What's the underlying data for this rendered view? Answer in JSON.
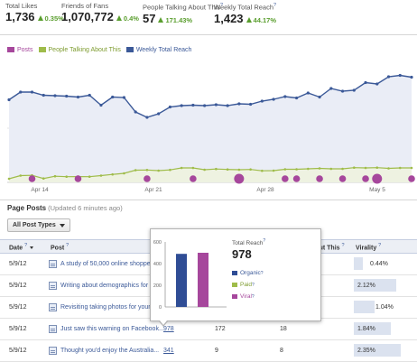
{
  "stats": [
    {
      "label": "Total Likes",
      "value": "1,736",
      "change": "0.35%"
    },
    {
      "label": "Friends of Fans",
      "value": "1,070,772",
      "change": "0.4%"
    },
    {
      "label": "People Talking About This",
      "value": "57",
      "change": "171.43%"
    },
    {
      "label": "Weekly Total Reach",
      "value": "1,423",
      "change": "44.17%"
    }
  ],
  "colors": {
    "posts": "#a6479c",
    "talking": "#9fbc4a",
    "reach": "#3b5998",
    "positive": "#5a9e2e",
    "link": "#3b5998"
  },
  "chart_data": {
    "type": "line",
    "legend": [
      "Posts",
      "People Talking About This",
      "Weekly Total Reach"
    ],
    "x_ticks": [
      "Apr 14",
      "Apr 21",
      "Apr 28",
      "May 5"
    ],
    "series": [
      {
        "name": "Weekly Total Reach",
        "values": [
          915,
          1000,
          1000,
          965,
          960,
          955,
          945,
          965,
          855,
          945,
          940,
          780,
          720,
          760,
          835,
          850,
          855,
          850,
          860,
          850,
          870,
          865,
          900,
          920,
          950,
          935,
          990,
          945,
          1040,
          1010,
          1020,
          1105,
          1090,
          1170,
          1185,
          1165
        ]
      },
      {
        "name": "People Talking About This",
        "values": [
          40,
          75,
          78,
          43,
          68,
          63,
          64,
          63,
          75,
          88,
          100,
          135,
          137,
          130,
          138,
          160,
          160,
          140,
          148,
          143,
          140,
          143,
          128,
          130,
          145,
          145,
          150,
          155,
          150,
          150,
          163,
          160,
          163,
          155,
          160,
          160
        ]
      },
      {
        "name": "Posts",
        "markers": [
          2,
          6,
          12,
          16,
          20,
          24,
          25,
          27,
          29,
          31,
          32,
          35
        ]
      }
    ],
    "marker_sizes": [
      1,
      1,
      1,
      1,
      2,
      1,
      1,
      1,
      1,
      1,
      2,
      1
    ]
  },
  "page_posts": {
    "title": "Page Posts",
    "updated": "(Updated 6 minutes ago)",
    "filter": "All Post Types",
    "columns": {
      "date": "Date",
      "post": "Post",
      "talking": "About This",
      "virality": "Virality"
    },
    "rows": [
      {
        "date": "5/9/12",
        "post": "A study of 50,000 online shoppers",
        "reach": "",
        "engaged": "",
        "talking": "",
        "virality": "0.44%",
        "vir": 0.44
      },
      {
        "date": "5/9/12",
        "post": "Writing about demographics for m...",
        "reach": "",
        "engaged": "",
        "talking": "",
        "virality": "2.12%",
        "vir": 2.12
      },
      {
        "date": "5/9/12",
        "post": "Revisiting taking photos for your o...",
        "reach": "",
        "engaged": "",
        "talking": "",
        "virality": "1.04%",
        "vir": 1.04
      },
      {
        "date": "5/9/12",
        "post": "Just saw this warning on Facebook...",
        "reach": "978",
        "engaged": "172",
        "talking": "18",
        "virality": "1.84%",
        "vir": 1.84
      },
      {
        "date": "5/9/12",
        "post": "Thought you'd enjoy the Australia...",
        "reach": "341",
        "engaged": "9",
        "talking": "8",
        "virality": "2.35%",
        "vir": 2.35
      }
    ]
  },
  "tooltip": {
    "title": "Total Reach",
    "value": "978",
    "legend": [
      "Organic",
      "Paid",
      "Viral"
    ],
    "chart_data": {
      "type": "bar",
      "categories": [
        "Organic",
        "Paid",
        "Viral"
      ],
      "values": [
        490,
        0,
        500
      ],
      "ylim": [
        0,
        600
      ],
      "y_ticks": [
        "600",
        "400",
        "200",
        "0"
      ]
    }
  }
}
